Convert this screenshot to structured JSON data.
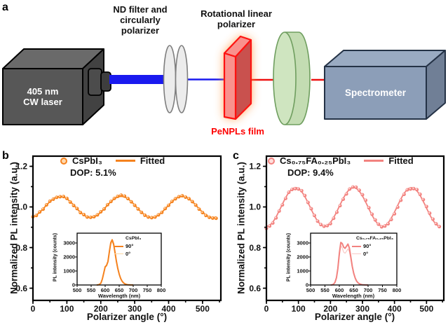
{
  "figure": {
    "panel_a": {
      "label": "a",
      "laser_label": "405 nm\nCW laser",
      "nd_filter_label": "ND filter and\ncircularly\npolarizer",
      "rot_polarizer_label": "Rotational linear\npolarizer",
      "film_label": "PeNPLs film",
      "spectrometer_label": "Spectrometer",
      "colors": {
        "beam_blue": "#1a1aef",
        "beam_red": "#ee1111",
        "laser_gray": "#575757",
        "disk_gray": "#ececec",
        "film_front": "#f9928d",
        "film_side": "#c9514e",
        "film_outline": "#fe1210",
        "film_glow": "#ff9a45",
        "polarizer_green": "#cfe5c0",
        "spectrometer_blue": "#8c9eb8"
      }
    },
    "panel_b_label": "b",
    "panel_c_label": "c"
  },
  "chart_data": [
    {
      "panel": "b",
      "type": "scatter",
      "series_name": "CsPbI₃",
      "fitted_name": "Fitted",
      "dop_label": "DOP: 5.1%",
      "xlabel": "Polarizer angle (°)",
      "ylabel": "Normalized PL intensity (a.u.)",
      "xlim": [
        0,
        554
      ],
      "ylim": [
        0.54,
        1.25
      ],
      "xticks": [
        0,
        100,
        200,
        300,
        400,
        500
      ],
      "yticks": [
        0.6,
        0.8,
        1.0,
        1.2
      ],
      "xtick_minor_step": 50,
      "ytick_minor_step": 0.1,
      "color": "#f5821e",
      "marker_inner": "#ffd9ae",
      "fit": {
        "mean": 1.0,
        "amplitude": 0.052,
        "period_deg": 180,
        "peak_x": 80
      },
      "points": {
        "x": [
          0,
          10,
          20,
          30,
          40,
          50,
          60,
          70,
          80,
          90,
          100,
          110,
          120,
          130,
          140,
          150,
          160,
          170,
          180,
          190,
          200,
          210,
          220,
          230,
          240,
          250,
          260,
          270,
          280,
          290,
          300,
          310,
          320,
          330,
          340,
          350,
          360,
          370,
          380,
          390,
          400,
          410,
          420,
          430,
          440,
          450,
          460,
          470,
          480,
          490,
          500,
          510,
          520,
          530,
          540
        ],
        "y": [
          0.952,
          0.958,
          0.975,
          0.989,
          1.01,
          1.028,
          1.038,
          1.047,
          1.05,
          1.051,
          1.042,
          1.024,
          1.007,
          0.992,
          0.972,
          0.962,
          0.95,
          0.949,
          0.952,
          0.961,
          0.976,
          0.99,
          1.011,
          1.027,
          1.042,
          1.052,
          1.058,
          1.053,
          1.041,
          1.025,
          1.008,
          0.99,
          0.973,
          0.959,
          0.95,
          0.947,
          0.95,
          0.961,
          0.973,
          0.992,
          1.008,
          1.027,
          1.04,
          1.05,
          1.055,
          1.048,
          1.04,
          1.026,
          1.009,
          0.989,
          0.972,
          0.958,
          0.949,
          0.945,
          0.944
        ]
      },
      "inset": {
        "title": "CsPbI₃",
        "xlabel": "Wavelength (nm)",
        "ylabel": "PL intensity (counts)",
        "xlim": [
          500,
          800
        ],
        "ylim": [
          0,
          3700
        ],
        "xticks": [
          500,
          550,
          600,
          650,
          700,
          750,
          800
        ],
        "yticks": [
          0,
          1000,
          2000,
          3000
        ],
        "series": [
          {
            "name": "90°",
            "color": "#f5821e",
            "width": 2,
            "x": [
              570,
              575,
              580,
              585,
              590,
              595,
              600,
              605,
              610,
              615,
              620,
              625,
              630,
              635,
              640,
              645,
              650,
              655,
              660,
              665,
              670,
              675,
              680,
              690,
              700
            ],
            "y": [
              0,
              10,
              45,
              140,
              430,
              860,
              1300,
              1400,
              1680,
              2380,
              3020,
              3230,
              2940,
              2340,
              1700,
              1180,
              780,
              480,
              280,
              160,
              85,
              45,
              20,
              5,
              0
            ]
          },
          {
            "name": "0°",
            "color": "#fbd7a4",
            "width": 1.2,
            "x": [
              570,
              575,
              580,
              585,
              590,
              595,
              600,
              605,
              610,
              615,
              620,
              625,
              630,
              635,
              640,
              645,
              650,
              655,
              660,
              665,
              670,
              675,
              680,
              690,
              700
            ],
            "y": [
              0,
              9,
              42,
              132,
              408,
              820,
              1245,
              1340,
              1610,
              2280,
              2890,
              3095,
              2820,
              2245,
              1630,
              1130,
              748,
              460,
              268,
              153,
              81,
              43,
              19,
              5,
              0
            ]
          }
        ]
      }
    },
    {
      "panel": "c",
      "type": "scatter",
      "series_name": "Cs₀.₇₅FA₀.₂₅PbI₃",
      "fitted_name": "Fitted",
      "dop_label": "DOP: 9.4%",
      "xlabel": "Polarizer angle (°)",
      "ylabel": "Normalized PL intensity (a.u.)",
      "xlim": [
        0,
        554
      ],
      "ylim": [
        0.54,
        1.25
      ],
      "xticks": [
        0,
        100,
        200,
        300,
        400,
        500
      ],
      "yticks": [
        0.6,
        0.8,
        1.0,
        1.2
      ],
      "xtick_minor_step": 50,
      "ytick_minor_step": 0.1,
      "color": "#f2827f",
      "marker_inner": "#ffdedb",
      "fit": {
        "mean": 1.0,
        "amplitude": 0.095,
        "period_deg": 181,
        "peak_x": 91
      },
      "points": {
        "x": [
          0,
          10,
          20,
          30,
          40,
          50,
          60,
          70,
          80,
          90,
          100,
          110,
          120,
          130,
          140,
          150,
          160,
          170,
          180,
          190,
          200,
          210,
          220,
          230,
          240,
          250,
          260,
          270,
          280,
          290,
          300,
          310,
          320,
          330,
          340,
          350,
          360,
          370,
          380,
          390,
          400,
          410,
          420,
          430,
          440,
          450,
          460,
          470,
          480,
          490,
          500,
          510,
          520,
          530,
          540
        ],
        "y": [
          0.894,
          0.906,
          0.921,
          0.946,
          0.98,
          1.01,
          1.042,
          1.072,
          1.086,
          1.09,
          1.088,
          1.08,
          1.056,
          1.022,
          0.991,
          0.958,
          0.93,
          0.913,
          0.905,
          0.908,
          0.918,
          0.944,
          0.974,
          1.006,
          1.038,
          1.064,
          1.088,
          1.098,
          1.097,
          1.082,
          1.06,
          1.033,
          0.996,
          0.964,
          0.936,
          0.915,
          0.902,
          0.906,
          0.917,
          0.938,
          0.966,
          0.999,
          1.033,
          1.062,
          1.084,
          1.088,
          1.09,
          1.085,
          1.062,
          1.036,
          1.002,
          0.969,
          0.94,
          0.917,
          0.903
        ]
      },
      "inset": {
        "title": "Cs₀.₇₅FA₀.₂₅PbI₃",
        "xlabel": "Wavelength (nm)",
        "ylabel": "PL intensity (counts)",
        "xlim": [
          500,
          800
        ],
        "ylim": [
          0,
          3700
        ],
        "xticks": [
          500,
          550,
          600,
          650,
          700,
          750,
          800
        ],
        "yticks": [
          0,
          1000,
          2000,
          3000
        ],
        "series": [
          {
            "name": "90°",
            "color": "#f2827f",
            "width": 2,
            "x": [
              570,
              575,
              580,
              585,
              590,
              595,
              600,
              605,
              610,
              615,
              620,
              625,
              630,
              635,
              640,
              645,
              650,
              655,
              660,
              665,
              670,
              675,
              680,
              690,
              700
            ],
            "y": [
              0,
              15,
              60,
              190,
              520,
              1180,
              2250,
              3040,
              2960,
              2700,
              2620,
              2770,
              2920,
              2640,
              2000,
              1340,
              840,
              500,
              280,
              155,
              85,
              45,
              20,
              5,
              0
            ]
          },
          {
            "name": "0°",
            "color": "#fac9c5",
            "width": 1.2,
            "x": [
              570,
              575,
              580,
              585,
              590,
              595,
              600,
              605,
              610,
              615,
              620,
              625,
              630,
              635,
              640,
              645,
              650,
              655,
              660,
              665,
              670,
              675,
              680,
              690,
              700
            ],
            "y": [
              0,
              12,
              50,
              160,
              450,
              1050,
              2050,
              2820,
              2640,
              2340,
              2270,
              2410,
              2580,
              2380,
              1830,
              1240,
              780,
              460,
              258,
              142,
              76,
              40,
              18,
              4,
              0
            ]
          }
        ]
      }
    }
  ]
}
